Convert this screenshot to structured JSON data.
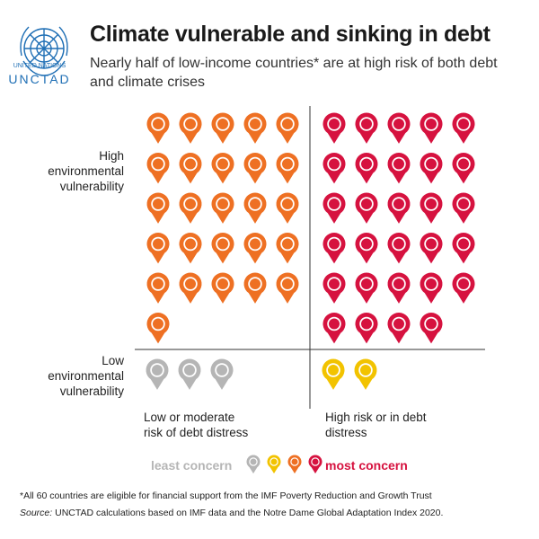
{
  "header": {
    "title": "Climate vulnerable and sinking in debt",
    "subtitle": "Nearly half of low-income countries* are at high risk of both debt and climate crises"
  },
  "logo": {
    "line1": "UNITED NATIONS",
    "line2": "UNCTAD"
  },
  "chart_data": {
    "type": "pictogram",
    "rows": [
      "High environmental vulnerability",
      "Low environmental vulnerability"
    ],
    "columns": [
      "Low or moderate risk of debt distress",
      "High risk or in debt distress"
    ],
    "cells": [
      {
        "row": "High environmental vulnerability",
        "column": "Low or moderate risk of debt distress",
        "count": 26,
        "color": "#ee7023"
      },
      {
        "row": "High environmental vulnerability",
        "column": "High risk or in debt distress",
        "count": 29,
        "color": "#d6123f"
      },
      {
        "row": "Low environmental vulnerability",
        "column": "Low or moderate risk of debt distress",
        "count": 3,
        "color": "#b5b5b5"
      },
      {
        "row": "Low environmental vulnerability",
        "column": "High risk or in debt distress",
        "count": 2,
        "color": "#f2c300"
      }
    ]
  },
  "labels": {
    "row_high_1": "High",
    "row_high_2": "environmental",
    "row_high_3": "vulnerability",
    "row_low_1": "Low",
    "row_low_2": "environmental",
    "row_low_3": "vulnerability",
    "col_left_1": "Low or moderate",
    "col_left_2": "risk of debt distress",
    "col_right_1": "High risk or in debt",
    "col_right_2": "distress"
  },
  "legend": {
    "least": "least concern",
    "most": "most concern",
    "colors": [
      "#b5b5b5",
      "#f2c300",
      "#ee7023",
      "#d6123f"
    ]
  },
  "footnote": "*All 60 countries are eligible for financial support from the IMF Poverty Reduction and Growth Trust",
  "source_label": "Source:",
  "source_text": " UNCTAD calculations based on IMF data and the Notre Dame Global Adaptation Index 2020."
}
